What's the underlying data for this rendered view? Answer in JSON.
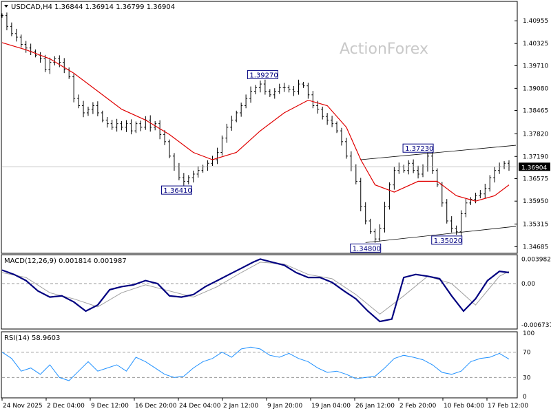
{
  "header": {
    "symbol_line": "USDCAD,H4  1.36844 1.36914 1.36799 1.36904"
  },
  "watermark": "ActionForex",
  "colors": {
    "candle": "#000000",
    "moving_average": "#e00000",
    "macd_line": "#000080",
    "signal_line": "#a0a0a0",
    "rsi_line": "#1e90ff",
    "callout_border": "#000080",
    "callout_text": "#000080",
    "current_price_box": "#000000"
  },
  "chart_data": [
    {
      "type": "candlestick",
      "title": "USDCAD,H4",
      "ohlc_last": {
        "open": 1.36844,
        "high": 1.36914,
        "low": 1.36799,
        "close": 1.36904
      },
      "current_price_label": "1.36904",
      "ylim": [
        1.3454,
        1.4115
      ],
      "y_ticks": [
        "1.40955",
        "1.40325",
        "1.39710",
        "1.39080",
        "1.38465",
        "1.37820",
        "1.37190",
        "1.36575",
        "1.35950",
        "1.35315",
        "1.34685"
      ],
      "x_ticks": [
        "24 Nov 2025",
        "2 Dec 04:00",
        "9 Dec 12:00",
        "16 Dec 20:00",
        "24 Dec 04:00",
        "2 Jan 12:00",
        "9 Jan 20:00",
        "19 Jan 04:00",
        "26 Jan 12:00",
        "2 Feb 20:00",
        "10 Feb 04:00",
        "17 Feb 12:00"
      ],
      "close_path": [
        [
          0,
          1.411
        ],
        [
          4,
          1.408
        ],
        [
          8,
          1.406
        ],
        [
          12,
          1.405
        ],
        [
          16,
          1.403
        ],
        [
          20,
          1.402
        ],
        [
          24,
          1.401
        ],
        [
          28,
          1.4
        ],
        [
          32,
          1.399
        ],
        [
          36,
          1.396
        ],
        [
          40,
          1.398
        ],
        [
          44,
          1.399
        ],
        [
          48,
          1.398
        ],
        [
          52,
          1.396
        ],
        [
          56,
          1.394
        ],
        [
          60,
          1.388
        ],
        [
          64,
          1.386
        ],
        [
          68,
          1.384
        ],
        [
          72,
          1.385
        ],
        [
          76,
          1.386
        ],
        [
          80,
          1.384
        ],
        [
          84,
          1.382
        ],
        [
          88,
          1.381
        ],
        [
          92,
          1.38
        ],
        [
          96,
          1.381
        ],
        [
          100,
          1.38
        ],
        [
          104,
          1.381
        ],
        [
          108,
          1.379
        ],
        [
          112,
          1.381
        ],
        [
          116,
          1.38
        ],
        [
          120,
          1.382
        ],
        [
          124,
          1.38
        ],
        [
          128,
          1.381
        ],
        [
          132,
          1.378
        ],
        [
          136,
          1.376
        ],
        [
          140,
          1.372
        ],
        [
          144,
          1.369
        ],
        [
          148,
          1.366
        ],
        [
          152,
          1.365
        ],
        [
          156,
          1.366
        ],
        [
          160,
          1.367
        ],
        [
          164,
          1.368
        ],
        [
          168,
          1.369
        ],
        [
          172,
          1.37
        ],
        [
          176,
          1.371
        ],
        [
          180,
          1.373
        ],
        [
          184,
          1.377
        ],
        [
          188,
          1.38
        ],
        [
          192,
          1.382
        ],
        [
          196,
          1.384
        ],
        [
          200,
          1.386
        ],
        [
          204,
          1.388
        ],
        [
          208,
          1.39
        ],
        [
          212,
          1.391
        ],
        [
          216,
          1.392
        ],
        [
          220,
          1.39
        ],
        [
          224,
          1.389
        ],
        [
          228,
          1.39
        ],
        [
          232,
          1.391
        ],
        [
          236,
          1.391
        ],
        [
          240,
          1.3905
        ],
        [
          244,
          1.39
        ],
        [
          248,
          1.392
        ],
        [
          252,
          1.3915
        ],
        [
          256,
          1.389
        ],
        [
          260,
          1.386
        ],
        [
          264,
          1.385
        ],
        [
          268,
          1.383
        ],
        [
          272,
          1.382
        ],
        [
          276,
          1.381
        ],
        [
          280,
          1.379
        ],
        [
          284,
          1.376
        ],
        [
          288,
          1.372
        ],
        [
          292,
          1.369
        ],
        [
          296,
          1.365
        ],
        [
          300,
          1.358
        ],
        [
          304,
          1.354
        ],
        [
          308,
          1.351
        ],
        [
          312,
          1.349
        ],
        [
          316,
          1.352
        ],
        [
          320,
          1.358
        ],
        [
          324,
          1.364
        ],
        [
          328,
          1.368
        ],
        [
          332,
          1.369
        ],
        [
          336,
          1.368
        ],
        [
          340,
          1.37
        ],
        [
          344,
          1.368
        ],
        [
          348,
          1.367
        ],
        [
          352,
          1.369
        ],
        [
          356,
          1.372
        ],
        [
          360,
          1.368
        ],
        [
          364,
          1.364
        ],
        [
          368,
          1.359
        ],
        [
          372,
          1.354
        ],
        [
          376,
          1.352
        ],
        [
          380,
          1.351
        ],
        [
          384,
          1.356
        ],
        [
          388,
          1.359
        ],
        [
          392,
          1.36
        ],
        [
          396,
          1.361
        ],
        [
          400,
          1.3615
        ],
        [
          404,
          1.363
        ],
        [
          408,
          1.366
        ],
        [
          412,
          1.368
        ],
        [
          416,
          1.369
        ],
        [
          420,
          1.37
        ],
        [
          424,
          1.369
        ]
      ],
      "moving_average": [
        [
          0,
          1.4035
        ],
        [
          20,
          1.4015
        ],
        [
          40,
          1.399
        ],
        [
          60,
          1.395
        ],
        [
          80,
          1.39
        ],
        [
          100,
          1.385
        ],
        [
          120,
          1.382
        ],
        [
          140,
          1.378
        ],
        [
          160,
          1.373
        ],
        [
          176,
          1.371
        ],
        [
          196,
          1.373
        ],
        [
          216,
          1.379
        ],
        [
          236,
          1.384
        ],
        [
          256,
          1.3875
        ],
        [
          272,
          1.386
        ],
        [
          288,
          1.38
        ],
        [
          300,
          1.371
        ],
        [
          312,
          1.364
        ],
        [
          328,
          1.362
        ],
        [
          348,
          1.365
        ],
        [
          364,
          1.365
        ],
        [
          380,
          1.361
        ],
        [
          396,
          1.3595
        ],
        [
          412,
          1.361
        ],
        [
          424,
          1.364
        ]
      ],
      "callouts": [
        {
          "label": "1.39270",
          "x": 218,
          "price": 1.3927
        },
        {
          "label": "1.36410",
          "x": 146,
          "price": 1.3641
        },
        {
          "label": "1.37230",
          "x": 348,
          "price": 1.3723
        },
        {
          "label": "1.34800",
          "x": 304,
          "price": 1.348
        },
        {
          "label": "1.35020",
          "x": 372,
          "price": 1.3502
        }
      ],
      "channel": {
        "upper": [
          [
            300,
            1.371
          ],
          [
            424,
            1.375
          ]
        ],
        "lower": [
          [
            304,
            1.348
          ],
          [
            424,
            1.3525
          ]
        ]
      }
    },
    {
      "type": "line",
      "title": "MACD(12,26,9) 0.001814 0.001987",
      "y_ticks": [
        "0.003982",
        "0.00",
        "-0.006737"
      ],
      "ylim": [
        -0.0072,
        0.0045
      ],
      "macd": [
        [
          0,
          0.0022
        ],
        [
          10,
          0.0015
        ],
        [
          20,
          0.0005
        ],
        [
          30,
          -0.0012
        ],
        [
          40,
          -0.0022
        ],
        [
          50,
          -0.002
        ],
        [
          60,
          -0.003
        ],
        [
          70,
          -0.0045
        ],
        [
          80,
          -0.0035
        ],
        [
          90,
          -0.001
        ],
        [
          100,
          -0.0005
        ],
        [
          110,
          -0.0002
        ],
        [
          120,
          0.0005
        ],
        [
          130,
          0.0
        ],
        [
          140,
          -0.002
        ],
        [
          150,
          -0.0022
        ],
        [
          160,
          -0.0018
        ],
        [
          170,
          -0.0005
        ],
        [
          180,
          0.0005
        ],
        [
          190,
          0.0015
        ],
        [
          200,
          0.0025
        ],
        [
          210,
          0.0035
        ],
        [
          216,
          0.004
        ],
        [
          226,
          0.0035
        ],
        [
          236,
          0.003
        ],
        [
          246,
          0.0018
        ],
        [
          256,
          0.001
        ],
        [
          266,
          0.001
        ],
        [
          276,
          0.0002
        ],
        [
          286,
          -0.0012
        ],
        [
          296,
          -0.0025
        ],
        [
          306,
          -0.0045
        ],
        [
          316,
          -0.0062
        ],
        [
          326,
          -0.0058
        ],
        [
          336,
          0.001
        ],
        [
          346,
          0.0015
        ],
        [
          356,
          0.0012
        ],
        [
          366,
          0.0008
        ],
        [
          376,
          -0.002
        ],
        [
          386,
          -0.0045
        ],
        [
          396,
          -0.0025
        ],
        [
          406,
          0.0005
        ],
        [
          416,
          0.002
        ],
        [
          424,
          0.0018
        ]
      ],
      "signal": [
        [
          0,
          0.0018
        ],
        [
          20,
          0.001
        ],
        [
          40,
          -0.0015
        ],
        [
          60,
          -0.0025
        ],
        [
          80,
          -0.0038
        ],
        [
          100,
          -0.0015
        ],
        [
          120,
          -0.0002
        ],
        [
          140,
          -0.0012
        ],
        [
          160,
          -0.0022
        ],
        [
          180,
          -0.0005
        ],
        [
          200,
          0.0018
        ],
        [
          216,
          0.0035
        ],
        [
          236,
          0.0032
        ],
        [
          256,
          0.0015
        ],
        [
          276,
          0.0008
        ],
        [
          296,
          -0.0018
        ],
        [
          316,
          -0.005
        ],
        [
          336,
          -0.002
        ],
        [
          356,
          0.0012
        ],
        [
          376,
          0.0
        ],
        [
          396,
          -0.0035
        ],
        [
          416,
          0.0012
        ],
        [
          424,
          0.002
        ]
      ]
    },
    {
      "type": "line",
      "title": "RSI(14) 58.9603",
      "y_ticks": [
        "100",
        "70",
        "30",
        "0"
      ],
      "ylim": [
        0,
        100
      ],
      "rsi": [
        [
          0,
          70
        ],
        [
          8,
          60
        ],
        [
          16,
          40
        ],
        [
          24,
          45
        ],
        [
          32,
          35
        ],
        [
          40,
          50
        ],
        [
          48,
          30
        ],
        [
          56,
          25
        ],
        [
          64,
          40
        ],
        [
          72,
          55
        ],
        [
          80,
          40
        ],
        [
          88,
          45
        ],
        [
          96,
          50
        ],
        [
          104,
          40
        ],
        [
          112,
          62
        ],
        [
          120,
          55
        ],
        [
          128,
          45
        ],
        [
          136,
          35
        ],
        [
          144,
          30
        ],
        [
          152,
          32
        ],
        [
          160,
          45
        ],
        [
          168,
          55
        ],
        [
          176,
          60
        ],
        [
          184,
          70
        ],
        [
          192,
          62
        ],
        [
          200,
          75
        ],
        [
          208,
          78
        ],
        [
          216,
          75
        ],
        [
          224,
          65
        ],
        [
          232,
          62
        ],
        [
          240,
          68
        ],
        [
          248,
          60
        ],
        [
          256,
          55
        ],
        [
          264,
          45
        ],
        [
          272,
          38
        ],
        [
          280,
          40
        ],
        [
          288,
          35
        ],
        [
          296,
          28
        ],
        [
          304,
          30
        ],
        [
          312,
          32
        ],
        [
          320,
          45
        ],
        [
          328,
          60
        ],
        [
          336,
          65
        ],
        [
          344,
          62
        ],
        [
          352,
          58
        ],
        [
          360,
          50
        ],
        [
          368,
          38
        ],
        [
          376,
          35
        ],
        [
          384,
          40
        ],
        [
          392,
          55
        ],
        [
          400,
          60
        ],
        [
          408,
          62
        ],
        [
          416,
          68
        ],
        [
          424,
          59
        ]
      ]
    }
  ]
}
